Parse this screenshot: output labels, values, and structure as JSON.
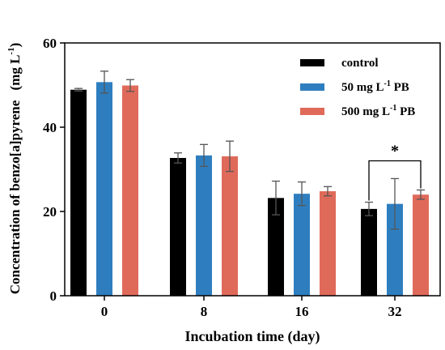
{
  "chart_data": {
    "type": "bar",
    "title": "",
    "xlabel": "Incubation time (day)",
    "ylabel": "Concentration of benzo[a]pyrene",
    "ylabel_unit": {
      "open": "(mg L",
      "sup": "-1",
      "close": ")"
    },
    "ylim": [
      0,
      60
    ],
    "yticks": [
      "0",
      "20",
      "40",
      "60"
    ],
    "categories": [
      "0",
      "8",
      "16",
      "32"
    ],
    "series": [
      {
        "name": "control",
        "color": "#000000",
        "values": [
          48.9,
          32.7,
          23.2,
          20.6
        ],
        "errors": [
          0.3,
          1.2,
          4.0,
          1.6
        ]
      },
      {
        "name": "50 mg L-1 PB",
        "color": "#2e7ebf",
        "legend": {
          "pre": "50 mg L",
          "sup": "-1",
          "post": " PB"
        },
        "values": [
          50.7,
          33.3,
          24.2,
          21.8
        ],
        "errors": [
          2.6,
          2.6,
          2.8,
          6.0
        ]
      },
      {
        "name": "500 mg L-1 PB",
        "color": "#e06a5a",
        "legend": {
          "pre": "500 mg L",
          "sup": "-1",
          "post": " PB"
        },
        "values": [
          49.9,
          33.1,
          24.8,
          24.0
        ],
        "errors": [
          1.4,
          3.6,
          1.1,
          1.1
        ]
      }
    ],
    "annotations": [
      {
        "text": "*",
        "category": "32",
        "between_series": [
          "control",
          "500 mg L-1 PB"
        ]
      }
    ],
    "legend_position": "top-right",
    "grid": false
  }
}
